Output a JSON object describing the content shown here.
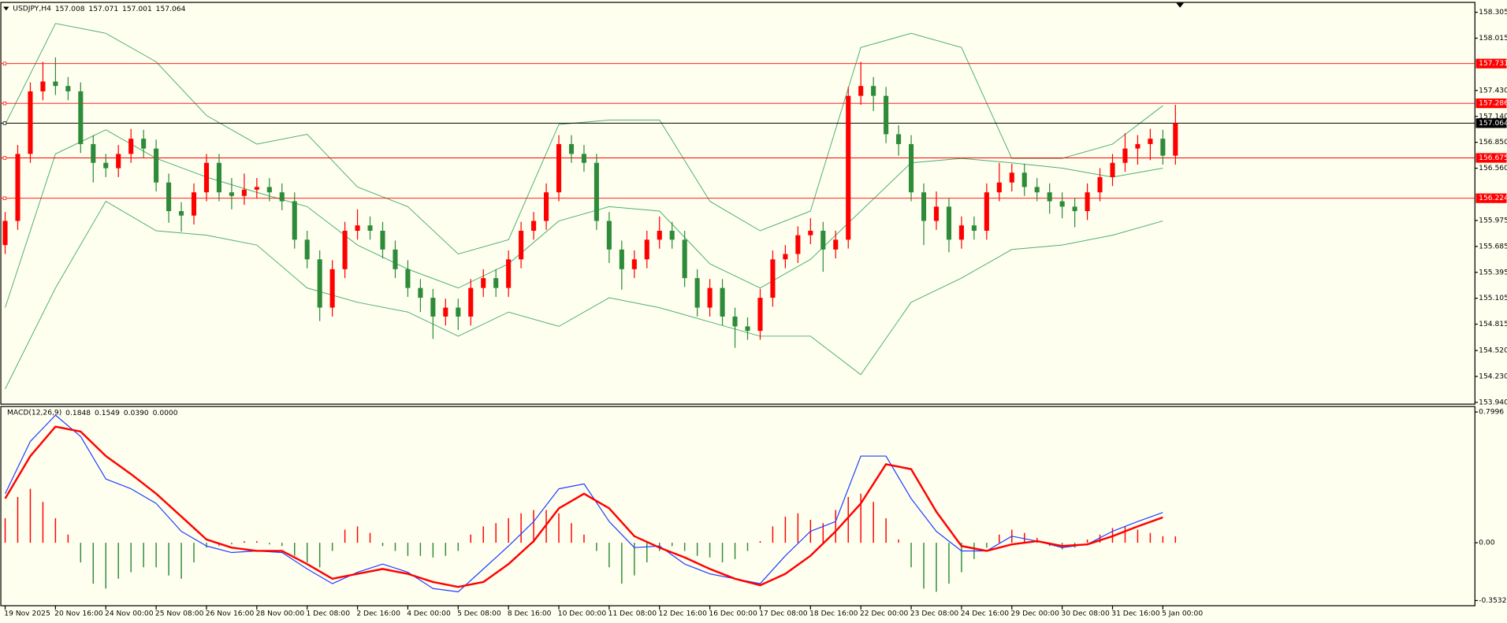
{
  "chart_data": [
    {
      "type": "candlestick",
      "title": "USDJPY,H4",
      "header_values": [
        157.008,
        157.071,
        157.001,
        157.064
      ],
      "up_color": "#ff0000",
      "down_color": "#2e8b3a",
      "xlim": [
        -0.38,
        116.8
      ],
      "ylim": [
        153.92,
        158.41
      ],
      "yticks": [
        158.305,
        158.015,
        {
          "value": 157.43,
          "label": "157.430"
        },
        {
          "value": 157.14,
          "label": "157.140"
        },
        {
          "value": 156.85,
          "label": "156.850"
        },
        {
          "value": 156.56,
          "label": "156.560"
        },
        155.975,
        155.685,
        155.395,
        155.105,
        154.815,
        {
          "value": 154.52,
          "label": "154.520"
        },
        {
          "value": 154.23,
          "label": "154.230"
        },
        {
          "value": 153.94,
          "label": "153.940"
        }
      ],
      "levels": [
        {
          "value": 157.731,
          "color": "#ff0000"
        },
        {
          "value": 157.286,
          "color": "#ff0000"
        },
        {
          "value": 157.064,
          "color": "#000000"
        },
        {
          "value": 156.675,
          "color": "#ff0000"
        },
        {
          "value": 156.224,
          "color": "#ff0000"
        }
      ],
      "open": [
        155.7,
        155.97,
        156.72,
        157.42,
        157.53,
        157.48,
        157.42,
        156.83,
        156.62,
        156.56,
        156.72,
        156.89,
        156.78,
        156.4,
        156.08,
        156.03,
        156.29,
        156.62,
        156.29,
        156.25,
        156.32,
        156.35,
        156.29,
        156.19,
        155.76,
        155.54,
        155.0,
        155.43,
        155.86,
        155.92,
        155.86,
        155.65,
        155.43,
        155.22,
        155.11,
        154.9,
        155.0,
        154.9,
        155.22,
        155.33,
        155.22,
        155.54,
        155.86,
        155.97,
        156.29,
        156.83,
        156.72,
        156.62,
        155.97,
        155.65,
        155.43,
        155.54,
        155.76,
        155.86,
        155.76,
        155.33,
        155.0,
        155.22,
        154.9,
        154.79,
        154.74,
        155.11,
        155.54,
        155.6,
        155.81,
        155.86,
        155.65,
        155.76,
        157.37,
        157.48,
        157.37,
        156.94,
        156.83,
        156.29,
        155.97,
        156.13,
        155.76,
        155.92,
        155.86,
        156.29,
        156.4,
        156.51,
        156.35,
        156.29,
        156.19,
        156.13,
        156.08,
        156.29,
        156.46,
        156.62,
        156.78,
        156.83,
        156.89,
        156.7
      ],
      "high": [
        156.07,
        156.82,
        157.52,
        157.75,
        157.8,
        157.58,
        157.52,
        156.93,
        156.72,
        156.82,
        157.0,
        156.99,
        156.88,
        156.5,
        156.18,
        156.39,
        156.72,
        156.72,
        156.45,
        156.5,
        156.45,
        156.45,
        156.39,
        156.29,
        155.86,
        155.64,
        155.53,
        155.96,
        156.1,
        156.02,
        155.96,
        155.75,
        155.53,
        155.32,
        155.21,
        155.1,
        155.1,
        155.32,
        155.43,
        155.43,
        155.64,
        155.96,
        156.07,
        156.39,
        156.93,
        156.93,
        156.82,
        156.72,
        156.07,
        155.75,
        155.64,
        155.86,
        156.02,
        155.96,
        155.86,
        155.43,
        155.32,
        155.32,
        155.0,
        154.89,
        155.21,
        155.64,
        155.7,
        155.91,
        156.0,
        155.96,
        155.86,
        157.47,
        157.75,
        157.58,
        157.47,
        157.04,
        156.93,
        156.39,
        156.3,
        156.23,
        156.02,
        156.02,
        156.39,
        156.62,
        156.61,
        156.61,
        156.45,
        156.39,
        156.29,
        156.23,
        156.39,
        156.56,
        156.72,
        156.95,
        156.93,
        157.0,
        156.99,
        157.27
      ],
      "low": [
        155.6,
        155.87,
        156.62,
        157.32,
        157.38,
        157.32,
        156.73,
        156.4,
        156.46,
        156.46,
        156.62,
        156.68,
        156.3,
        155.95,
        155.85,
        155.93,
        156.19,
        156.19,
        156.1,
        156.15,
        156.22,
        156.19,
        156.09,
        155.66,
        155.44,
        154.85,
        154.9,
        155.33,
        155.76,
        155.76,
        155.55,
        155.33,
        155.12,
        154.95,
        154.65,
        154.8,
        154.75,
        154.8,
        155.12,
        155.12,
        155.12,
        155.44,
        155.76,
        155.87,
        156.19,
        156.62,
        156.52,
        155.87,
        155.5,
        155.2,
        155.33,
        155.44,
        155.66,
        155.66,
        155.23,
        154.9,
        154.9,
        154.8,
        154.55,
        154.64,
        154.64,
        155.01,
        155.44,
        155.5,
        155.71,
        155.4,
        155.55,
        155.66,
        157.27,
        157.2,
        156.84,
        156.7,
        156.19,
        155.7,
        155.87,
        155.62,
        155.66,
        155.76,
        155.76,
        156.19,
        156.3,
        156.25,
        156.19,
        156.05,
        156.0,
        155.9,
        155.98,
        156.19,
        156.36,
        156.52,
        156.6,
        156.65,
        156.6,
        156.6
      ],
      "close": [
        155.97,
        156.72,
        157.42,
        157.53,
        157.48,
        157.42,
        156.83,
        156.62,
        156.56,
        156.72,
        156.89,
        156.78,
        156.4,
        156.08,
        156.03,
        156.29,
        156.62,
        156.29,
        156.25,
        156.32,
        156.35,
        156.29,
        156.19,
        155.76,
        155.54,
        155.0,
        155.43,
        155.86,
        155.92,
        155.86,
        155.65,
        155.43,
        155.22,
        155.11,
        154.9,
        155.0,
        154.9,
        155.22,
        155.33,
        155.22,
        155.54,
        155.86,
        155.97,
        156.29,
        156.83,
        156.72,
        156.62,
        155.97,
        155.65,
        155.43,
        155.54,
        155.76,
        155.86,
        155.76,
        155.33,
        155.0,
        155.22,
        154.9,
        154.79,
        154.74,
        155.11,
        155.54,
        155.6,
        155.81,
        155.86,
        155.65,
        155.76,
        157.37,
        157.48,
        157.37,
        156.94,
        156.83,
        156.29,
        155.97,
        156.13,
        155.76,
        155.92,
        155.86,
        156.29,
        156.4,
        156.51,
        156.35,
        156.29,
        156.19,
        156.13,
        156.08,
        156.29,
        156.46,
        156.62,
        156.78,
        156.83,
        156.89,
        156.7,
        157.064
      ],
      "bands": {
        "color": "#4caf6e",
        "x": [
          0,
          4,
          8,
          12,
          16,
          20,
          24,
          28,
          32,
          36,
          40,
          44,
          48,
          52,
          56,
          60,
          64,
          68,
          72,
          76,
          80,
          84,
          88,
          92
        ],
        "upper": [
          157.05,
          158.18,
          158.07,
          157.75,
          157.15,
          156.83,
          156.94,
          156.35,
          156.13,
          155.6,
          155.76,
          157.05,
          157.1,
          157.1,
          156.19,
          155.86,
          156.08,
          157.91,
          158.07,
          157.91,
          156.67,
          156.67,
          156.83,
          157.26
        ],
        "middle": [
          155.0,
          156.72,
          156.99,
          156.67,
          156.46,
          156.29,
          156.13,
          155.7,
          155.43,
          155.22,
          155.49,
          155.97,
          156.13,
          156.08,
          155.49,
          155.22,
          155.54,
          156.08,
          156.62,
          156.67,
          156.62,
          156.56,
          156.46,
          156.56
        ],
        "lower": [
          154.09,
          155.22,
          156.19,
          155.86,
          155.81,
          155.7,
          155.22,
          155.06,
          154.95,
          154.68,
          154.95,
          154.79,
          155.11,
          155.0,
          154.84,
          154.68,
          154.68,
          154.25,
          155.06,
          155.33,
          155.65,
          155.7,
          155.81,
          155.97
        ]
      }
    },
    {
      "type": "macd",
      "title": "MACD(12,26,9)",
      "legend_values": [
        0.1848,
        0.1549,
        0.039,
        0
      ],
      "legend_value_labels": [
        "0.1848",
        "0.1549",
        "0.0390",
        "0.0000"
      ],
      "xlim": [
        -0.38,
        116.8
      ],
      "ylim": [
        -0.385,
        0.83
      ],
      "yticks": [
        0.7996,
        {
          "value": 0,
          "label": "0.00"
        },
        -0.3532
      ],
      "xticks": [
        {
          "value": 0,
          "label": "19 Nov 2025"
        },
        {
          "value": 4,
          "label": "20 Nov 16:00"
        },
        {
          "value": 8,
          "label": "24 Nov 00:00"
        },
        {
          "value": 12,
          "label": "25 Nov 08:00"
        },
        {
          "value": 16,
          "label": "26 Nov 16:00"
        },
        {
          "value": 20,
          "label": "28 Nov 00:00"
        },
        {
          "value": 24,
          "label": "1 Dec 08:00"
        },
        {
          "value": 28,
          "label": "2 Dec 16:00"
        },
        {
          "value": 32,
          "label": "4 Dec 00:00"
        },
        {
          "value": 36,
          "label": "5 Dec 08:00"
        },
        {
          "value": 40,
          "label": "8 Dec 16:00"
        },
        {
          "value": 44,
          "label": "10 Dec 00:00"
        },
        {
          "value": 48,
          "label": "11 Dec 08:00"
        },
        {
          "value": 52,
          "label": "12 Dec 16:00"
        },
        {
          "value": 56,
          "label": "16 Dec 00:00"
        },
        {
          "value": 60,
          "label": "17 Dec 08:00"
        },
        {
          "value": 64,
          "label": "18 Dec 16:00"
        },
        {
          "value": 68,
          "label": "22 Dec 00:00"
        },
        {
          "value": 72,
          "label": "23 Dec 08:00"
        },
        {
          "value": 76,
          "label": "24 Dec 16:00"
        },
        {
          "value": 80,
          "label": "29 Dec 00:00"
        },
        {
          "value": 84,
          "label": "30 Dec 08:00"
        },
        {
          "value": 88,
          "label": "31 Dec 16:00"
        },
        {
          "value": 92,
          "label": "5 Jan 00:00"
        }
      ],
      "histogram": {
        "up_color": "#ff0000",
        "down_color": "#2e8b3a",
        "values": [
          0.15,
          0.28,
          0.33,
          0.25,
          0.15,
          0.05,
          -0.12,
          -0.25,
          -0.28,
          -0.22,
          -0.18,
          -0.15,
          -0.15,
          -0.2,
          -0.22,
          -0.12,
          -0.03,
          -0.02,
          -0.01,
          0.01,
          0.01,
          -0.01,
          -0.02,
          -0.08,
          -0.12,
          -0.15,
          -0.05,
          0.08,
          0.1,
          0.06,
          -0.02,
          -0.05,
          -0.08,
          -0.08,
          -0.09,
          -0.08,
          -0.05,
          0.05,
          0.1,
          0.12,
          0.15,
          0.18,
          0.2,
          0.2,
          0.18,
          0.12,
          0.05,
          -0.05,
          -0.15,
          -0.25,
          -0.2,
          -0.12,
          -0.05,
          -0.02,
          -0.05,
          -0.08,
          -0.09,
          -0.12,
          -0.1,
          -0.05,
          0.01,
          0.1,
          0.16,
          0.18,
          0.14,
          0.12,
          0.2,
          0.28,
          0.3,
          0.25,
          0.15,
          0.02,
          -0.15,
          -0.28,
          -0.3,
          -0.25,
          -0.18,
          -0.1,
          -0.03,
          0.05,
          0.08,
          0.06,
          0.03,
          -0.02,
          -0.04,
          -0.03,
          0.02,
          0.05,
          0.09,
          0.1,
          0.08,
          0.06,
          0.04,
          0.039
        ]
      },
      "x": [
        0,
        2,
        4,
        6,
        8,
        10,
        12,
        14,
        16,
        18,
        20,
        22,
        24,
        26,
        28,
        30,
        32,
        34,
        36,
        38,
        40,
        42,
        44,
        46,
        48,
        50,
        52,
        54,
        56,
        58,
        60,
        62,
        64,
        66,
        68,
        70,
        72,
        74,
        76,
        78,
        80,
        82,
        84,
        86,
        88,
        90,
        92
      ],
      "series": [
        {
          "color": "#1f3fff",
          "width": 1,
          "values": [
            0.3,
            0.62,
            0.78,
            0.65,
            0.39,
            0.33,
            0.24,
            0.07,
            -0.02,
            -0.06,
            -0.05,
            -0.06,
            -0.16,
            -0.25,
            -0.18,
            -0.13,
            -0.18,
            -0.28,
            -0.3,
            -0.16,
            -0.02,
            0.13,
            0.33,
            0.36,
            0.13,
            -0.03,
            -0.02,
            -0.13,
            -0.19,
            -0.22,
            -0.25,
            -0.08,
            0.07,
            0.13,
            0.53,
            0.53,
            0.27,
            0.07,
            -0.05,
            -0.05,
            0.04,
            0.01,
            -0.03,
            -0.01,
            0.07,
            0.13,
            0.1848
          ]
        },
        {
          "color": "#ff0000",
          "width": 2,
          "values": [
            0.27,
            0.53,
            0.71,
            0.68,
            0.53,
            0.42,
            0.3,
            0.16,
            0.02,
            -0.03,
            -0.05,
            -0.05,
            -0.13,
            -0.22,
            -0.19,
            -0.16,
            -0.19,
            -0.24,
            -0.27,
            -0.24,
            -0.13,
            0.01,
            0.21,
            0.3,
            0.21,
            0.04,
            -0.03,
            -0.09,
            -0.16,
            -0.22,
            -0.26,
            -0.19,
            -0.08,
            0.07,
            0.24,
            0.48,
            0.45,
            0.19,
            -0.02,
            -0.05,
            -0.01,
            0.01,
            -0.02,
            -0.01,
            0.04,
            0.1,
            0.1549
          ]
        }
      ]
    }
  ]
}
